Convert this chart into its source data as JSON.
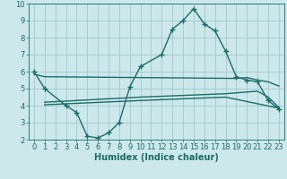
{
  "background_color": "#cde8ea",
  "grid_color": "#9ec8cc",
  "line_color": "#1a6b6b",
  "line_width": 1.0,
  "marker": "+",
  "markersize": 4,
  "markeredgewidth": 1.0,
  "xlabel": "Humidex (Indice chaleur)",
  "xlabel_fontsize": 7,
  "tick_fontsize": 6,
  "xlim": [
    -0.5,
    23.5
  ],
  "ylim": [
    2,
    10
  ],
  "yticks": [
    2,
    3,
    4,
    5,
    6,
    7,
    8,
    9,
    10
  ],
  "xticks": [
    0,
    1,
    2,
    3,
    4,
    5,
    6,
    7,
    8,
    9,
    10,
    11,
    12,
    13,
    14,
    15,
    16,
    17,
    18,
    19,
    20,
    21,
    22,
    23
  ],
  "curve1_x": [
    0,
    1,
    3,
    4,
    5,
    6,
    7,
    8,
    9,
    10,
    12,
    13,
    14,
    15,
    16,
    17,
    18,
    19,
    20,
    21,
    22,
    23
  ],
  "curve1_y": [
    6.0,
    5.0,
    4.0,
    3.6,
    2.2,
    2.1,
    2.4,
    3.0,
    5.1,
    6.3,
    7.0,
    8.5,
    9.0,
    9.7,
    8.8,
    8.4,
    7.2,
    5.7,
    5.5,
    5.4,
    4.3,
    3.8
  ],
  "line2_x": [
    0,
    1,
    19,
    20,
    21,
    22,
    23
  ],
  "line2_y": [
    5.85,
    5.7,
    5.6,
    5.65,
    5.5,
    5.4,
    5.15
  ],
  "line3_x": [
    1,
    10,
    18,
    19,
    20,
    21,
    22,
    23
  ],
  "line3_y": [
    4.2,
    4.5,
    4.7,
    4.75,
    4.8,
    4.85,
    4.5,
    3.9
  ],
  "line4_x": [
    1,
    10,
    18,
    23
  ],
  "line4_y": [
    4.05,
    4.3,
    4.5,
    3.85
  ]
}
